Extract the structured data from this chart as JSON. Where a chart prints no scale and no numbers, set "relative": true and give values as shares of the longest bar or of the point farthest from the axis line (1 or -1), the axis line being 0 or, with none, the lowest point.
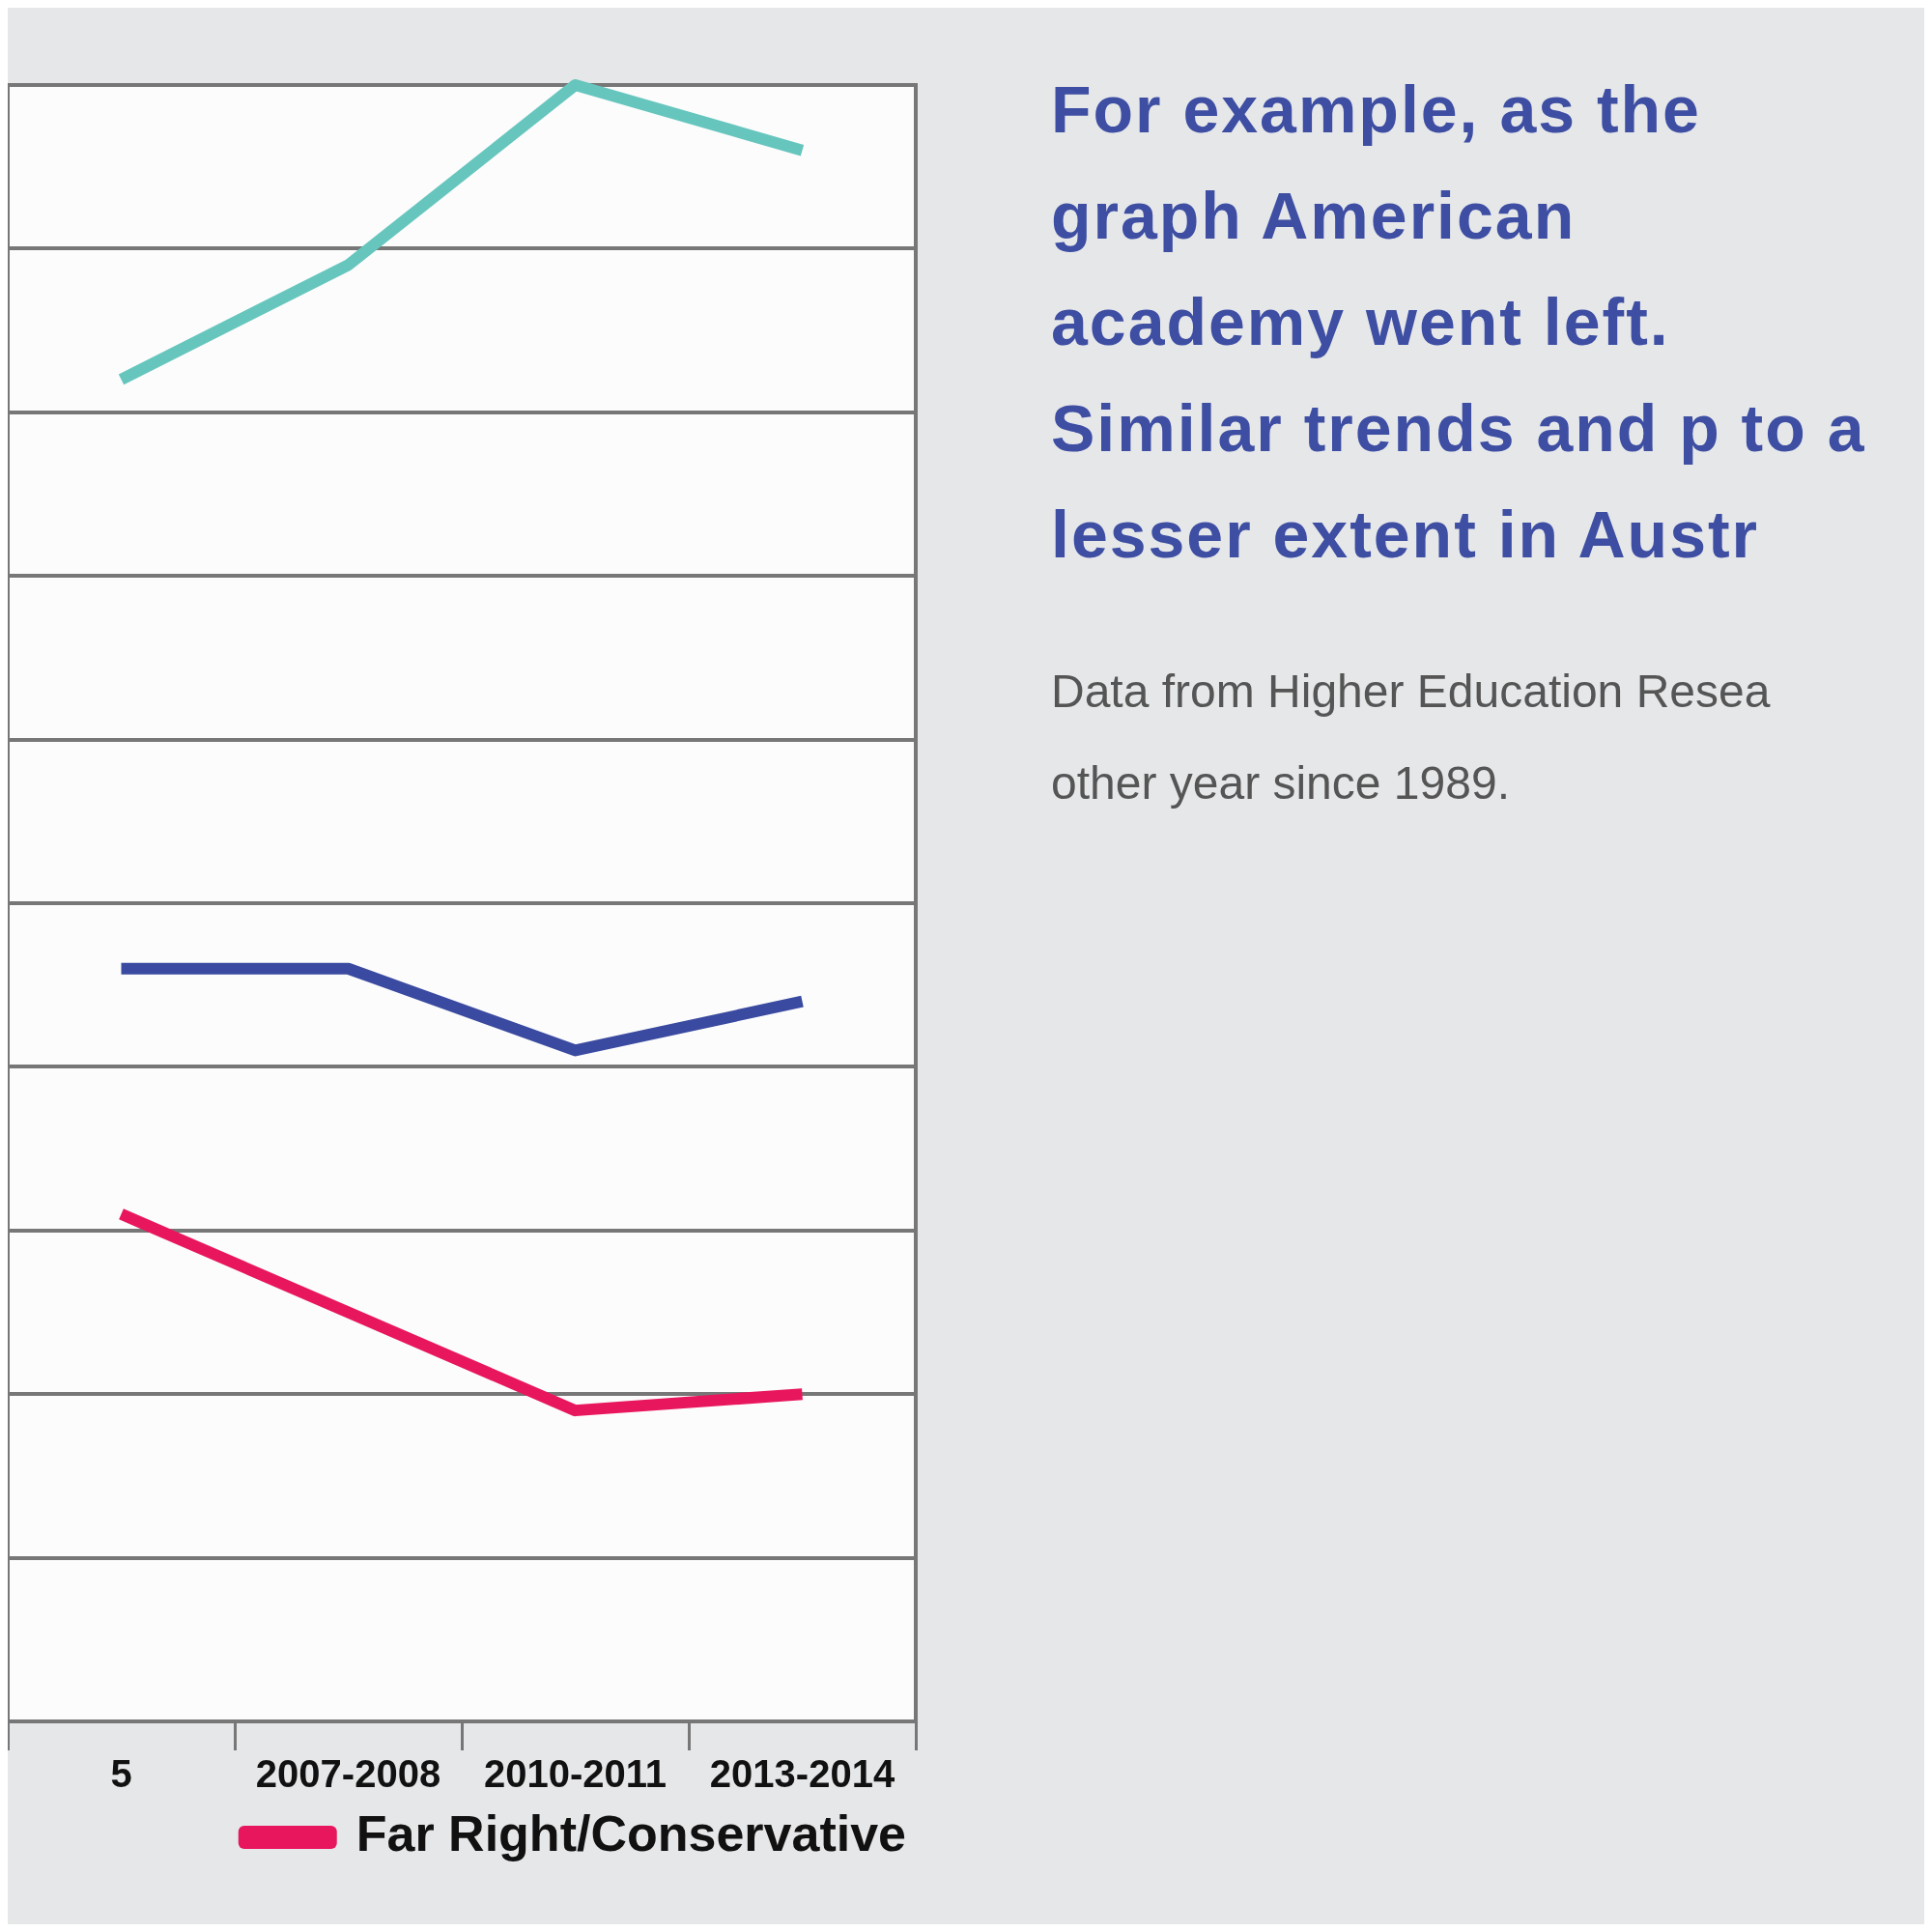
{
  "chart_data": {
    "type": "line",
    "relative": true,
    "categories": [
      "5",
      "2007-2008",
      "2010-2011",
      "2013-2014"
    ],
    "series": [
      {
        "color": "#66c6be",
        "values": [
          0.82,
          0.89,
          1,
          0.96
        ]
      },
      {
        "color": "#3a4aa0",
        "values": [
          0.46,
          0.46,
          0.41,
          0.44
        ]
      },
      {
        "name": "Far Right/Conservative",
        "color": "#e8175d",
        "values": [
          0.31,
          0.25,
          0.19,
          0.2
        ]
      }
    ],
    "grid": "y",
    "legend": "bottom",
    "marker": "none",
    "annotations": [
      "For example, as the graph American academy went left. Similar trends and p to a lesser extent in Austr",
      "Data from Higher Education Resea other year since 1989."
    ]
  }
}
